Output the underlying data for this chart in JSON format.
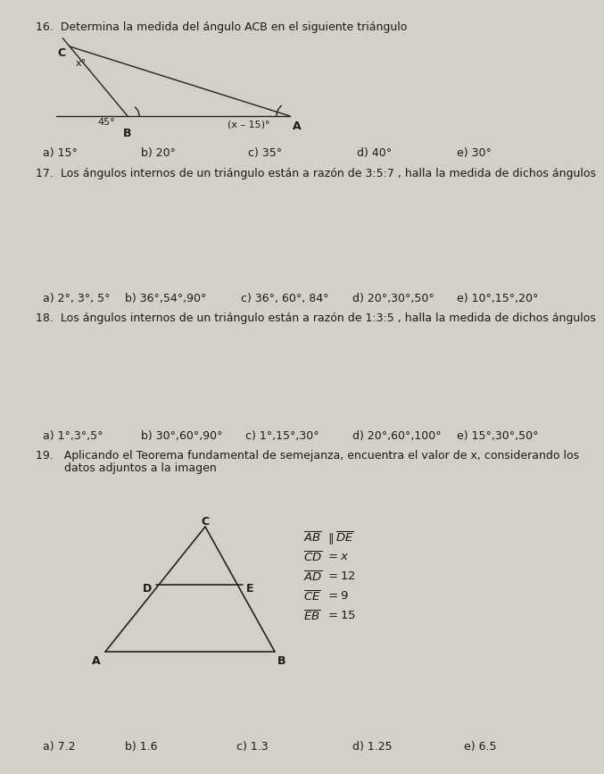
{
  "bg_color": "#d4d0c8",
  "text_color": "#1a1a1a",
  "q16_title": "16.  Determina la medida del ángulo ACB en el siguiente triángulo",
  "q16_answers": [
    "a) 15°",
    "b) 20°",
    "c) 35°",
    "d) 40°",
    "e) 30°"
  ],
  "q17_title": "17.  Los ángulos internos de un triángulo están a razón de 3:5:7 , halla la medida de dichos ángulos",
  "q17_answers": [
    "a) 2°, 3°, 5°",
    "b) 36°,54°,90°",
    "c) 36°, 60°, 84°",
    "d) 20°,30°,50°",
    "e) 10°,15°,20°"
  ],
  "q18_title": "18.  Los ángulos internos de un triángulo están a razón de 1:3:5 , halla la medida de dichos ángulos",
  "q18_answers": [
    "a) 1°,3°,5°",
    "b) 30°,60°,90°",
    "c) 1°,15°,30°",
    "d) 20°,60°,100°",
    "e) 15°,30°,50°"
  ],
  "q19_line1": "19.   Aplicando el Teorema fundamental de semejanza, encuentra el valor de x, considerando los",
  "q19_line2": "        datos adjuntos a la imagen",
  "q19_answers": [
    "a) 7.2",
    "b) 1.6",
    "c) 1.3",
    "d) 1.25",
    "e) 6.5"
  ],
  "ans_positions": [
    38,
    148,
    268,
    390,
    502
  ],
  "q19_ans_positions": [
    38,
    130,
    255,
    385,
    510
  ]
}
